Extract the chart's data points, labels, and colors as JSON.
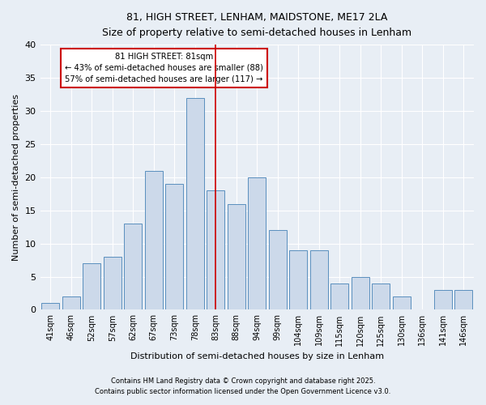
{
  "title1": "81, HIGH STREET, LENHAM, MAIDSTONE, ME17 2LA",
  "title2": "Size of property relative to semi-detached houses in Lenham",
  "xlabel": "Distribution of semi-detached houses by size in Lenham",
  "ylabel": "Number of semi-detached properties",
  "footnote1": "Contains HM Land Registry data © Crown copyright and database right 2025.",
  "footnote2": "Contains public sector information licensed under the Open Government Licence v3.0.",
  "bar_labels": [
    "41sqm",
    "46sqm",
    "52sqm",
    "57sqm",
    "62sqm",
    "67sqm",
    "73sqm",
    "78sqm",
    "83sqm",
    "88sqm",
    "94sqm",
    "99sqm",
    "104sqm",
    "109sqm",
    "115sqm",
    "120sqm",
    "125sqm",
    "130sqm",
    "136sqm",
    "141sqm",
    "146sqm"
  ],
  "bar_values": [
    1,
    2,
    7,
    8,
    13,
    21,
    19,
    32,
    18,
    16,
    20,
    12,
    9,
    9,
    4,
    5,
    4,
    2,
    0,
    3,
    3
  ],
  "bar_color": "#ccd9ea",
  "bar_edge_color": "#5a8fbe",
  "vline_index": 8,
  "vline_color": "#cc0000",
  "annotation_title": "81 HIGH STREET: 81sqm",
  "annotation_line1": "← 43% of semi-detached houses are smaller (88)",
  "annotation_line2": "57% of semi-detached houses are larger (117) →",
  "annotation_box_color": "#ffffff",
  "annotation_box_edge": "#cc0000",
  "ylim": [
    0,
    40
  ],
  "yticks": [
    0,
    5,
    10,
    15,
    20,
    25,
    30,
    35,
    40
  ],
  "bg_color": "#e8eef5",
  "plot_bg_color": "#e8eef5",
  "figsize": [
    6.0,
    5.0
  ],
  "dpi": 100
}
